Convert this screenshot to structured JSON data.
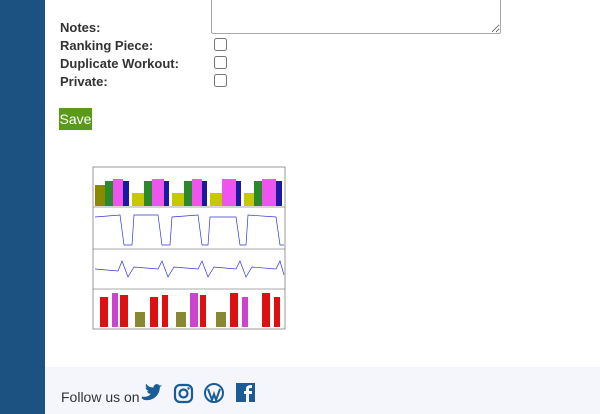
{
  "form": {
    "fields": [
      {
        "label": "Notes:"
      },
      {
        "label": "Ranking Piece:"
      },
      {
        "label": "Duplicate Workout:"
      },
      {
        "label": "Private:"
      }
    ],
    "save_button": "Save"
  },
  "footer": {
    "follow_text": "Follow us on"
  }
}
